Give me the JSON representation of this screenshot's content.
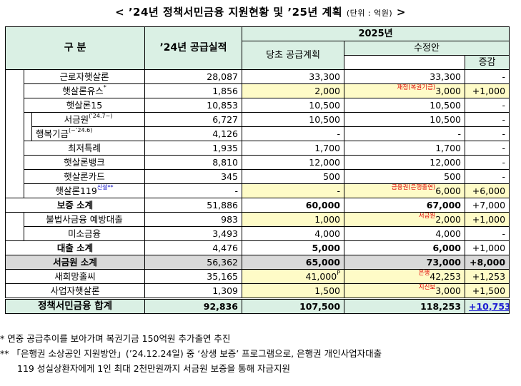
{
  "title": {
    "main": "< ’24년 정책서민금융 지원현황 및 ’25년 계획",
    "unit": "(단위 : 억원)",
    "end": ">"
  },
  "header": {
    "category": "구 분",
    "actual_2024": "’24년 공급실적",
    "year_2025": "2025년",
    "plan_initial": "당초 공급계획",
    "plan_revised": "수정안",
    "change": "증감"
  },
  "rows": [
    {
      "label": "근로자햇살론",
      "sup": "",
      "actual": "28,087",
      "initial": "33,300",
      "note": "",
      "revised": "33,300",
      "change": "-"
    },
    {
      "label": "햇살론유스",
      "sup": "*",
      "actual": "1,856",
      "initial": "2,000",
      "note": "재정(복권기금)",
      "revised": "3,000",
      "change": "+1,000"
    },
    {
      "label": "햇살론15",
      "sup": "",
      "actual": "10,853",
      "initial": "10,500",
      "note": "",
      "revised": "10,500",
      "change": "-"
    },
    {
      "label": "서금원",
      "sup": "(’24.7~)",
      "actual": "6,727",
      "initial": "10,500",
      "note": "",
      "revised": "10,500",
      "change": "-"
    },
    {
      "label": "행복기금",
      "sup": "(~’24.6)",
      "actual": "4,126",
      "initial": "-",
      "note": "",
      "revised": "-",
      "change": "-"
    },
    {
      "label": "최저특례",
      "sup": "",
      "actual": "1,935",
      "initial": "1,700",
      "note": "",
      "revised": "1,700",
      "change": "-"
    },
    {
      "label": "햇살론뱅크",
      "sup": "",
      "actual": "8,810",
      "initial": "12,000",
      "note": "",
      "revised": "12,000",
      "change": "-"
    },
    {
      "label": "햇살론카드",
      "sup": "",
      "actual": "345",
      "initial": "500",
      "note": "",
      "revised": "500",
      "change": "-"
    },
    {
      "label": "햇살론119",
      "sup": "신설**",
      "actual": "-",
      "initial": "-",
      "note": "금융권(은행출연)",
      "revised": "6,000",
      "change": "+6,000"
    },
    {
      "label": "보증 소계",
      "sup": "",
      "actual": "51,886",
      "initial": "60,000",
      "note": "",
      "revised": "67,000",
      "change": "+7,000"
    },
    {
      "label": "불법사금융 예방대출",
      "sup": "",
      "actual": "983",
      "initial": "1,000",
      "note": "서금원",
      "revised": "2,000",
      "change": "+1,000"
    },
    {
      "label": "미소금융",
      "sup": "",
      "actual": "3,493",
      "initial": "4,000",
      "note": "",
      "revised": "4,000",
      "change": "-"
    },
    {
      "label": "대출 소계",
      "sup": "",
      "actual": "4,476",
      "initial": "5,000",
      "note": "",
      "revised": "6,000",
      "change": "+1,000"
    },
    {
      "label": "서금원 소계",
      "sup": "",
      "actual": "56,362",
      "initial": "65,000",
      "note": "",
      "revised": "73,000",
      "change": "+8,000"
    },
    {
      "label": "새희망홀씨",
      "sup": "",
      "actual": "35,165",
      "initial": "41,000",
      "initial_sup": "P",
      "note": "은행",
      "revised": "42,253",
      "change": "+1,253"
    },
    {
      "label": "사업자햇살론",
      "sup": "",
      "actual": "1,309",
      "initial": "1,500",
      "note": "지신보",
      "revised": "3,000",
      "change": "+1,500"
    },
    {
      "label": "정책서민금융 합계",
      "sup": "",
      "actual": "92,836",
      "initial": "107,500",
      "note": "",
      "revised": "118,253",
      "change": "+10,753"
    }
  ],
  "footnotes": {
    "f1": "* 연중 공급추이를 보아가며 복권기금 150억원 추가출연 추진",
    "f2": "** 「은행권 소상공인 지원방안」(’24.12.24일) 중 ‘상생 보증’ 프로그램으로, 은행권 개인사업자대출",
    "f3": "119 성실상환자에게 1인 최대 2천만원까지 서금원 보증을 통해 자금지원"
  },
  "colors": {
    "header_bg": "#daf0e4",
    "highlight": "#fefbc7",
    "subtotal_gray": "#d9d9d9",
    "note_red": "#e00000",
    "total_change_blue": "#1c1cd2"
  }
}
